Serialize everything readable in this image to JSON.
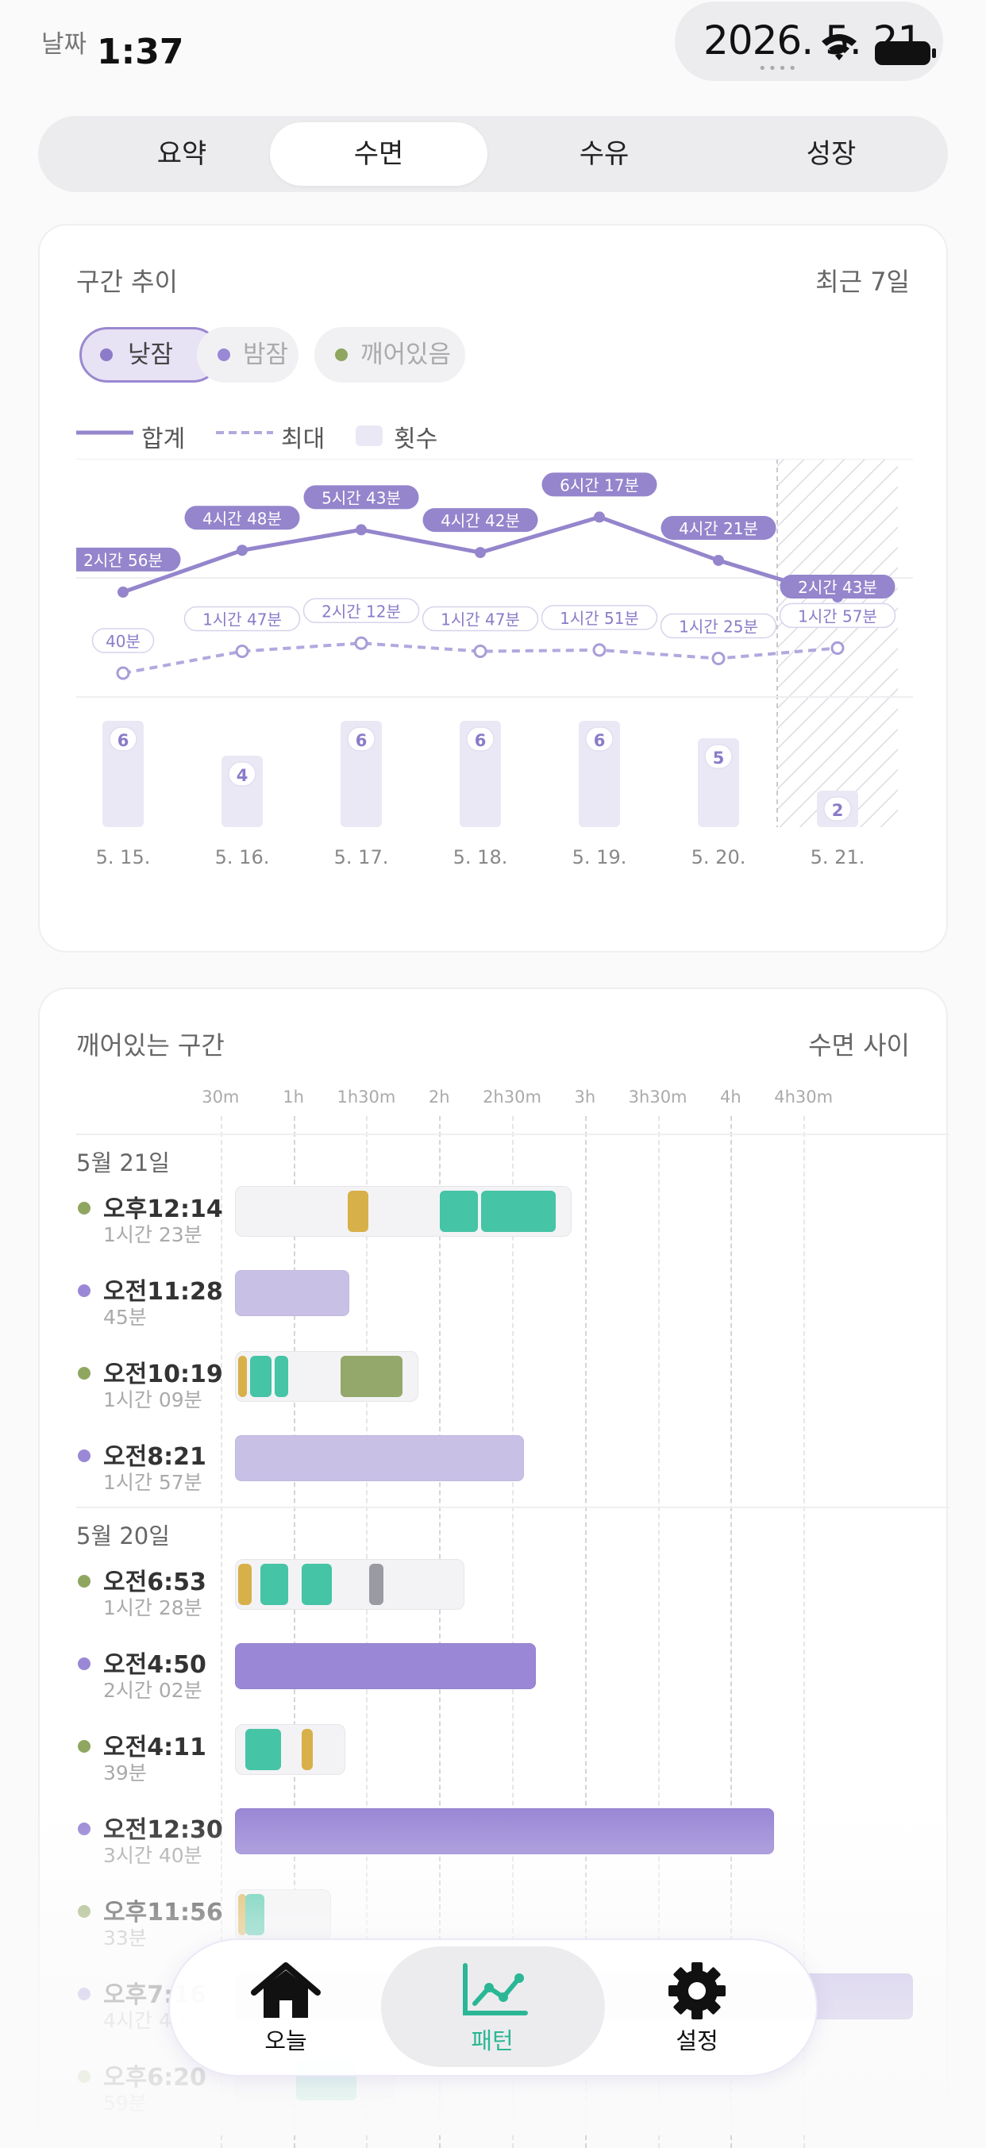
{
  "status_bar": {
    "label": "날짜",
    "time": "1:37",
    "date": "2026. 5. 21",
    "dots": "••••"
  },
  "tabs": [
    {
      "label": "요약",
      "active": false
    },
    {
      "label": "수면",
      "active": true
    },
    {
      "label": "수유",
      "active": false
    },
    {
      "label": "성장",
      "active": false
    }
  ],
  "trend": {
    "title": "구간 추이",
    "range": "최근 7일",
    "chips": [
      {
        "label": "낮잠",
        "color": "#8b7bc8",
        "active": true
      },
      {
        "label": "밤잠",
        "color": "#9a88d6",
        "active": false
      },
      {
        "label": "깨어있음",
        "color": "#8fa660",
        "active": false
      }
    ],
    "legend": {
      "total": "합계",
      "max": "최대",
      "count": "횟수"
    },
    "colors": {
      "total": "#9485cc",
      "max": "#b3a8de",
      "count": "#ebe8f5"
    }
  },
  "chart_data": {
    "type": "line",
    "categories": [
      "5. 15.",
      "5. 16.",
      "5. 17.",
      "5. 18.",
      "5. 19.",
      "5. 20.",
      "5. 21."
    ],
    "series": [
      {
        "name": "합계",
        "values": [
          176,
          288,
          343,
          282,
          377,
          261,
          163
        ],
        "labels": [
          "2시간 56분",
          "4시간 48분",
          "5시간 43분",
          "4시간 42분",
          "6시간 17분",
          "4시간 21분",
          "2시간 43분"
        ]
      },
      {
        "name": "최대",
        "values": [
          40,
          107,
          132,
          107,
          111,
          85,
          117
        ],
        "labels": [
          "40분",
          "1시간 47분",
          "2시간 12분",
          "1시간 47분",
          "1시간 51분",
          "1시간 25분",
          "1시간 57분"
        ]
      },
      {
        "name": "횟수",
        "type": "bar",
        "values": [
          6,
          4,
          6,
          6,
          6,
          5,
          2
        ]
      }
    ],
    "highlight_last": true
  },
  "timeline": {
    "title": "깨어있는 구간",
    "subtitle": "수면 사이",
    "axis": [
      "30m",
      "1h",
      "1h30m",
      "2h",
      "2h30m",
      "3h",
      "3h30m",
      "4h",
      "4h30m"
    ],
    "colors": {
      "awake": "#8fa660",
      "sleep": "#9a88d6",
      "nap_light": "#c9c0e6",
      "yellow": "#d8b04a",
      "teal": "#45c4a6",
      "olive": "#93a86a",
      "gray": "#9a9aa2"
    },
    "groups": [
      {
        "day": "5월 21일",
        "rows": [
          {
            "time": "오후12:14",
            "dur": "1시간 23분",
            "kind": "awake",
            "total": 83,
            "segments": [
              {
                "s": 45,
                "e": 55,
                "c": "yellow"
              },
              {
                "s": 83,
                "e": 100,
                "c": "teal"
              },
              {
                "s": 100,
                "e": 132,
                "c": "teal"
              }
            ]
          },
          {
            "time": "오전11:28",
            "dur": "45분",
            "kind": "sleep",
            "total": 45,
            "segments": [
              {
                "s": 0,
                "e": 45,
                "c": "nap_light"
              }
            ]
          },
          {
            "time": "오전10:19",
            "dur": "1시간 09분",
            "kind": "awake",
            "total": 69,
            "segments": [
              {
                "s": 0,
                "e": 5,
                "c": "yellow"
              },
              {
                "s": 5,
                "e": 15,
                "c": "teal"
              },
              {
                "s": 15,
                "e": 22,
                "c": "teal"
              },
              {
                "s": 42,
                "e": 69,
                "c": "olive"
              }
            ]
          },
          {
            "time": "오전8:21",
            "dur": "1시간 57분",
            "kind": "sleep",
            "total": 117,
            "segments": [
              {
                "s": 0,
                "e": 117,
                "c": "nap_light"
              }
            ]
          }
        ]
      },
      {
        "day": "5월 20일",
        "rows": [
          {
            "time": "오전6:53",
            "dur": "1시간 28분",
            "kind": "awake",
            "total": 88,
            "segments": [
              {
                "s": 0,
                "e": 7,
                "c": "yellow"
              },
              {
                "s": 9,
                "e": 22,
                "c": "teal"
              },
              {
                "s": 26,
                "e": 40,
                "c": "teal"
              },
              {
                "s": 54,
                "e": 61,
                "c": "gray"
              }
            ]
          },
          {
            "time": "오전4:50",
            "dur": "2시간 02분",
            "kind": "sleep",
            "total": 122,
            "segments": [
              {
                "s": 0,
                "e": 122,
                "c": "sleep"
              }
            ]
          },
          {
            "time": "오전4:11",
            "dur": "39분",
            "kind": "awake",
            "total": 39,
            "segments": [
              {
                "s": 3,
                "e": 19,
                "c": "teal"
              },
              {
                "s": 26,
                "e": 32,
                "c": "yellow"
              }
            ]
          },
          {
            "time": "오전12:30",
            "dur": "3시간 40분",
            "kind": "sleep",
            "total": 220,
            "segments": [
              {
                "s": 0,
                "e": 220,
                "c": "sleep"
              }
            ]
          },
          {
            "time": "오후11:56",
            "dur": "33분",
            "kind": "awake",
            "total": 33,
            "segments": [
              {
                "s": 0,
                "e": 3,
                "c": "yellow"
              },
              {
                "s": 3,
                "e": 12,
                "c": "teal"
              }
            ]
          },
          {
            "time": "오후7:16",
            "dur": "4시간 40분",
            "kind": "sleep",
            "total": 280,
            "segments": [
              {
                "s": 0,
                "e": 280,
                "c": "sleep"
              }
            ]
          },
          {
            "time": "오후6:20",
            "dur": "59분",
            "kind": "awake",
            "total": 59,
            "segments": [
              {
                "s": 24,
                "e": 50,
                "c": "teal"
              }
            ]
          }
        ]
      }
    ]
  },
  "nav": [
    {
      "label": "오늘",
      "icon": "home-icon",
      "active": false
    },
    {
      "label": "패턴",
      "icon": "chart-icon",
      "active": true
    },
    {
      "label": "설정",
      "icon": "gear-icon",
      "active": false
    }
  ],
  "nav_active_color": "#2bb795"
}
